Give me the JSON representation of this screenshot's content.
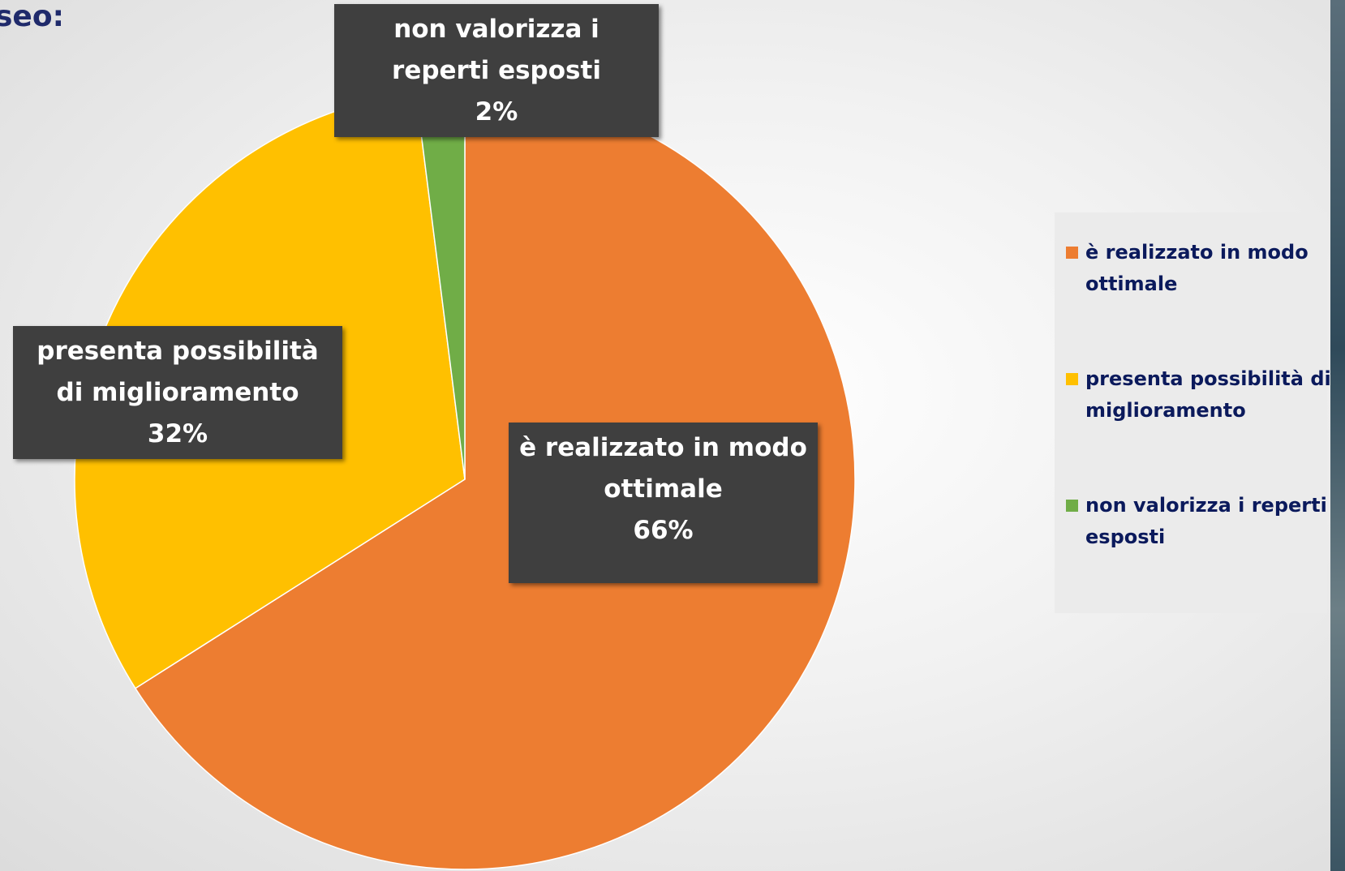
{
  "chart_data": {
    "type": "pie",
    "title": "seo:",
    "categories": [
      "è realizzato in modo ottimale",
      "presenta possibilità di miglioramento",
      "non valorizza i reperti esposti"
    ],
    "values": [
      66,
      32,
      2
    ],
    "value_labels": [
      "66%",
      "32%",
      "2%"
    ],
    "colors": [
      "#ed7d31",
      "#ffc000",
      "#70ad47"
    ],
    "legend": "right"
  }
}
